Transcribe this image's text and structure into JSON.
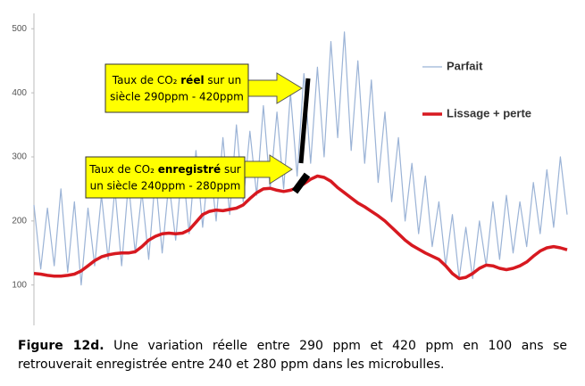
{
  "chart_data": {
    "type": "line",
    "x": [
      0,
      1,
      2,
      3,
      4,
      5,
      6,
      7,
      8,
      9,
      10,
      11,
      12,
      13,
      14,
      15,
      16,
      17,
      18,
      19,
      20,
      21,
      22,
      23,
      24,
      25,
      26,
      27,
      28,
      29,
      30,
      31,
      32,
      33,
      34,
      35,
      36,
      37,
      38,
      39,
      40,
      41,
      42,
      43,
      44,
      45,
      46,
      47,
      48,
      49,
      50,
      51,
      52,
      53,
      54,
      55,
      56,
      57,
      58,
      59,
      60,
      61,
      62,
      63,
      64,
      65,
      66,
      67,
      68,
      69,
      70,
      71,
      72,
      73,
      74,
      75,
      76,
      77,
      78,
      79
    ],
    "xlim": [
      0,
      79
    ],
    "ylim": [
      37,
      524
    ],
    "yticks": [
      100,
      200,
      300,
      400,
      500
    ],
    "legend": "upper right",
    "series": [
      {
        "name": "Parfait",
        "color": "#9bb3d6",
        "width": 1.2,
        "values": [
          225,
          125,
          220,
          130,
          250,
          120,
          230,
          100,
          220,
          130,
          240,
          140,
          250,
          130,
          260,
          150,
          245,
          140,
          270,
          150,
          260,
          170,
          290,
          180,
          310,
          190,
          300,
          200,
          330,
          210,
          350,
          230,
          340,
          240,
          380,
          250,
          370,
          250,
          400,
          270,
          430,
          290,
          440,
          300,
          480,
          330,
          495,
          310,
          450,
          290,
          420,
          260,
          370,
          230,
          330,
          200,
          290,
          180,
          270,
          160,
          230,
          130,
          210,
          110,
          190,
          110,
          200,
          130,
          230,
          140,
          240,
          150,
          230,
          160,
          260,
          180,
          280,
          190,
          300,
          210
        ]
      },
      {
        "name": "Lissage + perte",
        "color": "#d71920",
        "width": 3.5,
        "values": [
          118,
          117,
          115,
          114,
          114,
          115,
          117,
          122,
          130,
          138,
          144,
          147,
          149,
          150,
          150,
          152,
          160,
          170,
          176,
          180,
          181,
          180,
          181,
          186,
          198,
          210,
          215,
          217,
          216,
          218,
          220,
          225,
          235,
          244,
          250,
          251,
          248,
          246,
          248,
          252,
          258,
          265,
          270,
          268,
          262,
          252,
          244,
          236,
          228,
          222,
          215,
          208,
          200,
          190,
          180,
          170,
          162,
          156,
          150,
          145,
          140,
          130,
          118,
          110,
          112,
          118,
          126,
          131,
          130,
          126,
          124,
          126,
          130,
          136,
          145,
          153,
          158,
          160,
          158,
          155
        ]
      }
    ],
    "annotations": [
      {
        "line1": [
          "Taux de CO₂ ",
          "réel",
          " sur un"
        ],
        "line2": "siècle  290ppm - 420ppm"
      },
      {
        "line1": [
          "Taux de CO₂ ",
          "enregistré",
          " sur"
        ],
        "line2": "un siècle  240ppm - 280ppm"
      }
    ]
  },
  "caption": {
    "label": "Figure 12d.",
    "text": " Une variation réelle entre 290 ppm et 420 ppm en 100 ans se retrouverait enregistrée entre 240 et 280 ppm dans les microbulles."
  }
}
